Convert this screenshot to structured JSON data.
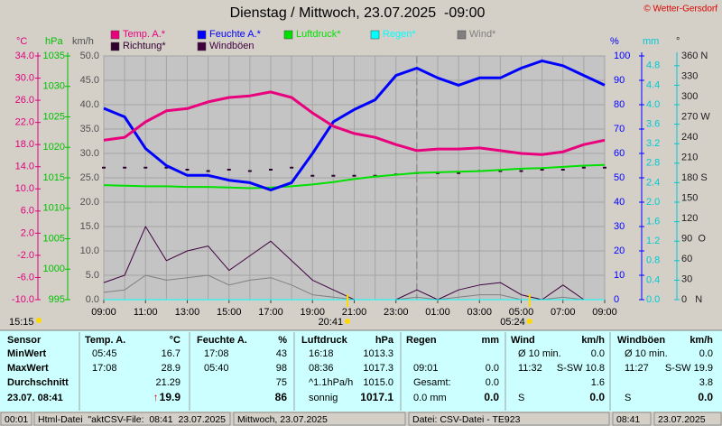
{
  "header": {
    "title": "Dienstag / Mittwoch, 23.07.2025  -09:00",
    "copyright": "© Wetter-Gersdorf"
  },
  "chart_data": {
    "type": "line",
    "grid": true,
    "grid_axis": "y3",
    "x": [
      0,
      1,
      2,
      3,
      4,
      5,
      6,
      7,
      8,
      9,
      10,
      11,
      12,
      13,
      14,
      15,
      16,
      17,
      18,
      19,
      20,
      21,
      22,
      23,
      24
    ],
    "xlim": [
      0,
      24
    ],
    "xticks": [
      {
        "value": 0,
        "label": "09:00"
      },
      {
        "value": 2,
        "label": "11:00"
      },
      {
        "value": 4,
        "label": "13:00"
      },
      {
        "value": 6,
        "label": "15:00"
      },
      {
        "value": 8,
        "label": "17:00"
      },
      {
        "value": 10,
        "label": "19:00"
      },
      {
        "value": 12,
        "label": "21:00"
      },
      {
        "value": 14,
        "label": "23:00"
      },
      {
        "value": 16,
        "label": "01:00"
      },
      {
        "value": 18,
        "label": "03:00"
      },
      {
        "value": 20,
        "label": "05:00"
      },
      {
        "value": 22,
        "label": "07:00"
      },
      {
        "value": 24,
        "label": "09:00"
      }
    ],
    "day_boundary": 15,
    "axes": [
      {
        "id": "y",
        "label": "°C",
        "color": "#e0007c",
        "lim": [
          -10,
          34
        ],
        "ticks": [
          {
            "value": -10,
            "label": "-10.0"
          },
          {
            "value": -6,
            "label": "-6.0"
          },
          {
            "value": -2,
            "label": "-2.0"
          },
          {
            "value": 2,
            "label": "2.0"
          },
          {
            "value": 6,
            "label": "6.0"
          },
          {
            "value": 10,
            "label": "10.0"
          },
          {
            "value": 14,
            "label": "14.0"
          },
          {
            "value": 18,
            "label": "18.0"
          },
          {
            "value": 22,
            "label": "22.0"
          },
          {
            "value": 26,
            "label": "26.0"
          },
          {
            "value": 30,
            "label": "30.0"
          },
          {
            "value": 34,
            "label": "34.0"
          }
        ]
      },
      {
        "id": "y2",
        "label": "hPa",
        "color": "#00c000",
        "lim": [
          995,
          1035
        ],
        "ticks": [
          995,
          1000,
          1005,
          1010,
          1015,
          1020,
          1025,
          1030,
          1035
        ]
      },
      {
        "id": "y3",
        "label": "km/h",
        "color": "#505050",
        "lim": [
          0,
          50
        ],
        "ticks": [
          {
            "value": 0,
            "label": "0.0"
          },
          {
            "value": 5,
            "label": "5.0"
          },
          {
            "value": 10,
            "label": "10.0"
          },
          {
            "value": 15,
            "label": "15.0"
          },
          {
            "value": 20,
            "label": "20.0"
          },
          {
            "value": 25,
            "label": "25.0"
          },
          {
            "value": 30,
            "label": "30.0"
          },
          {
            "value": 35,
            "label": "35.0"
          },
          {
            "value": 40,
            "label": "40.0"
          },
          {
            "value": 45,
            "label": "45.0"
          },
          {
            "value": 50,
            "label": "50.0"
          }
        ]
      },
      {
        "id": "y4",
        "label": "%",
        "color": "#0000ff",
        "lim": [
          0,
          100
        ],
        "ticks": [
          0,
          10,
          20,
          30,
          40,
          50,
          60,
          70,
          80,
          90,
          100
        ]
      },
      {
        "id": "y5",
        "label": "mm",
        "color": "#00c8d0",
        "lim": [
          0,
          5
        ],
        "ticks": [
          {
            "value": 0,
            "label": "0.0"
          },
          0.4,
          0.8,
          1.2,
          1.6,
          {
            "value": 2,
            "label": "2.0"
          },
          2.4,
          2.8,
          3.2,
          3.6,
          {
            "value": 4,
            "label": "4.0"
          },
          4.4,
          4.8
        ]
      },
      {
        "id": "y6",
        "label": "°",
        "color": "#202020",
        "lim": [
          0,
          360
        ],
        "ticks": [
          {
            "value": 0,
            "label": "0   N"
          },
          30,
          60,
          {
            "value": 90,
            "label": "90  O"
          },
          120,
          150,
          {
            "value": 180,
            "label": "180 S"
          },
          210,
          240,
          {
            "value": 270,
            "label": "270 W"
          },
          300,
          330,
          {
            "value": 360,
            "label": "360 N"
          }
        ]
      }
    ],
    "series": [
      {
        "name": "Temp. A.*",
        "color": "#e8007c",
        "axis": "y",
        "style": "line",
        "width": 3,
        "values": [
          18.8,
          19.3,
          22.1,
          24.1,
          24.5,
          25.7,
          26.5,
          26.8,
          27.5,
          26.5,
          23.7,
          21.3,
          20.0,
          19.3,
          18.0,
          16.9,
          17.2,
          17.2,
          17.4,
          16.9,
          16.4,
          16.2,
          16.7,
          18.0,
          18.8
        ]
      },
      {
        "name": "Feuchte A.*",
        "color": "#0000ff",
        "axis": "y4",
        "style": "line",
        "width": 3,
        "values": [
          78.5,
          75,
          62,
          55,
          51,
          51,
          49,
          48,
          45,
          48,
          60,
          73,
          78,
          82,
          92,
          95,
          91,
          88,
          91,
          91,
          95,
          98,
          96,
          92,
          88
        ]
      },
      {
        "name": "Luftdruck*",
        "color": "#00e000",
        "axis": "y2",
        "style": "line",
        "width": 2,
        "values": [
          1013.8,
          1013.7,
          1013.6,
          1013.6,
          1013.5,
          1013.5,
          1013.4,
          1013.3,
          1013.4,
          1013.6,
          1013.9,
          1014.3,
          1014.8,
          1015.2,
          1015.5,
          1015.8,
          1015.9,
          1016.0,
          1016.1,
          1016.3,
          1016.5,
          1016.6,
          1016.8,
          1017.0,
          1017.1
        ]
      },
      {
        "name": "Regen*",
        "color": "#00ffff",
        "axis": "y5",
        "style": "line",
        "width": 1,
        "values": [
          0,
          0,
          0,
          0,
          0,
          0,
          0,
          0,
          0,
          0,
          0,
          0,
          0,
          0,
          0,
          0,
          0,
          0,
          0,
          0,
          0,
          0,
          0,
          0,
          0
        ]
      },
      {
        "name": "Wind*",
        "color": "#808080",
        "axis": "y3",
        "style": "line",
        "width": 1,
        "values": [
          1.5,
          2,
          5,
          4,
          4.5,
          5,
          3,
          4,
          4.5,
          3,
          1,
          0.5,
          0,
          0,
          0,
          0.5,
          0,
          0.5,
          1,
          1,
          0,
          0,
          0.5,
          0,
          0
        ]
      },
      {
        "name": "Richtung*",
        "color": "#300030",
        "axis": "y6",
        "style": "dots",
        "width": 2,
        "values": [
          195,
          195,
          195,
          195,
          192,
          190,
          192,
          190,
          192,
          195,
          183,
          183,
          183,
          183,
          185,
          187,
          187,
          187,
          190,
          190,
          190,
          192,
          192,
          195,
          195
        ]
      },
      {
        "name": "Windböen",
        "color": "#400040",
        "axis": "y3",
        "style": "line",
        "width": 1,
        "values": [
          3.5,
          5,
          15,
          8,
          10,
          11,
          6,
          9,
          12,
          8,
          4,
          2,
          0,
          0,
          0,
          2,
          0,
          2,
          3,
          3.5,
          1,
          0,
          3,
          0,
          0
        ]
      }
    ],
    "moon_label": "15:15",
    "sun_events": [
      {
        "x": 11.68,
        "label": "20:41"
      },
      {
        "x": 20.4,
        "label": "05:24"
      }
    ]
  },
  "table": {
    "columns": [
      {
        "title": "Sensor"
      },
      {
        "title": "Temp. A.",
        "unit": "°C"
      },
      {
        "title": "Feuchte A.",
        "unit": "%"
      },
      {
        "title": "Luftdruck",
        "unit": "hPa"
      },
      {
        "title": "Regen",
        "unit": "mm"
      },
      {
        "title": "Wind",
        "unit": "km/h"
      },
      {
        "title": "Windböen",
        "unit": "km/h"
      }
    ],
    "rows": [
      {
        "label": "MinWert",
        "cells": [
          [
            "05:45",
            "16.7"
          ],
          [
            "17:08",
            "43"
          ],
          [
            "16:18",
            "1013.3"
          ],
          [
            null,
            null
          ],
          [
            "Ø 10 min.",
            "0.0"
          ],
          [
            "Ø 10 min.",
            "0.0"
          ]
        ]
      },
      {
        "label": "MaxWert",
        "cells": [
          [
            "17:08",
            "28.9"
          ],
          [
            "05:40",
            "98"
          ],
          [
            "08:36",
            "1017.3"
          ],
          [
            "09:01",
            "0.0"
          ],
          [
            "11:32",
            "S-SW 10.8"
          ],
          [
            "11:27",
            "S-SW 19.9"
          ]
        ]
      },
      {
        "label": "Durchschnitt",
        "cells": [
          [
            null,
            "21.29"
          ],
          [
            null,
            "75"
          ],
          [
            "^1.1hPa/h",
            "1015.0"
          ],
          [
            "Gesamt:",
            "0.0"
          ],
          [
            null,
            "1.6"
          ],
          [
            null,
            "3.8"
          ]
        ]
      },
      {
        "label": "23.07. 08:41",
        "cells": [
          [
            null,
            "19.9"
          ],
          [
            null,
            "86"
          ],
          [
            "sonnig",
            "1017.1"
          ],
          [
            "0.0 mm",
            "0.0"
          ],
          [
            "S",
            "0.0"
          ],
          [
            "S",
            "0.0"
          ]
        ]
      }
    ],
    "trend": "↑"
  },
  "status_bar": [
    "00:01",
    "Html-Datei  \"aktCSV-File:  08:41  23.07.2025",
    "Mittwoch, 23.07.2025",
    "Datei: CSV-Datei - TE923",
    "08:41",
    "23.07.2025"
  ]
}
